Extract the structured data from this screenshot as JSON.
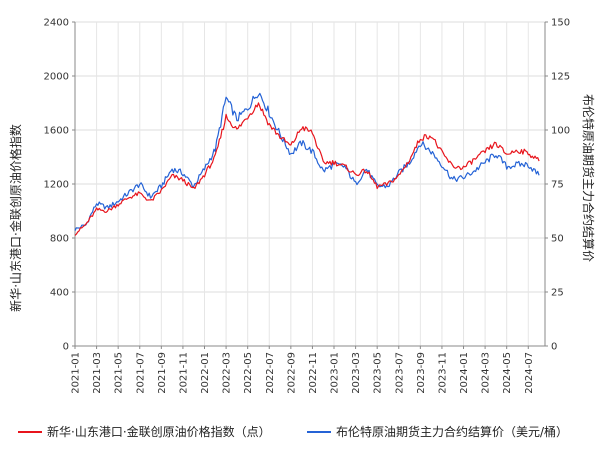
{
  "chart_data": {
    "type": "line",
    "title": "",
    "xlabel": "",
    "ylabel_left": "新华·山东港口·金联创原油价格指数",
    "ylabel_right": "布伦特原油期货主力合约结算价",
    "ylim_left": [
      0,
      2400
    ],
    "ylim_right": [
      0,
      150
    ],
    "yticks_left": [
      "0",
      "400",
      "800",
      "1200",
      "1600",
      "2000",
      "2400"
    ],
    "yticks_right": [
      "0",
      "25",
      "50",
      "75",
      "100",
      "125",
      "150"
    ],
    "x_ticks": [
      "2021-01",
      "2021-03",
      "2021-05",
      "2021-07",
      "2021-09",
      "2021-11",
      "2022-01",
      "2022-03",
      "2022-05",
      "2022-07",
      "2022-09",
      "2022-11",
      "2023-01",
      "2023-03",
      "2023-05",
      "2023-07",
      "2023-09",
      "2023-11",
      "2024-01",
      "2024-03",
      "2024-05",
      "2024-07"
    ],
    "x": [
      "2021-01",
      "2021-02",
      "2021-03",
      "2021-04",
      "2021-05",
      "2021-06",
      "2021-07",
      "2021-08",
      "2021-09",
      "2021-10",
      "2021-11",
      "2021-12",
      "2022-01",
      "2022-02",
      "2022-03",
      "2022-04",
      "2022-05",
      "2022-06",
      "2022-07",
      "2022-08",
      "2022-09",
      "2022-10",
      "2022-11",
      "2022-12",
      "2023-01",
      "2023-02",
      "2023-03",
      "2023-04",
      "2023-05",
      "2023-06",
      "2023-07",
      "2023-08",
      "2023-09",
      "2023-10",
      "2023-11",
      "2023-12",
      "2024-01",
      "2024-02",
      "2024-03",
      "2024-04",
      "2024-05",
      "2024-06",
      "2024-07",
      "2024-08"
    ],
    "grid": true,
    "legend_position": "bottom",
    "series": [
      {
        "name": "新华·山东港口·金联创原油价格指数（点）",
        "axis": "left",
        "color": "#e8141c",
        "values": [
          830,
          900,
          1010,
          1000,
          1050,
          1100,
          1130,
          1070,
          1150,
          1260,
          1230,
          1160,
          1270,
          1400,
          1700,
          1600,
          1700,
          1800,
          1640,
          1550,
          1480,
          1620,
          1580,
          1360,
          1360,
          1330,
          1270,
          1300,
          1180,
          1200,
          1260,
          1380,
          1540,
          1560,
          1430,
          1330,
          1320,
          1380,
          1440,
          1500,
          1420,
          1450,
          1430,
          1370
        ]
      },
      {
        "name": "布伦特原油期货主力合约结算价（美元/桶）",
        "axis": "right",
        "color": "#2563d6",
        "values": [
          54,
          56,
          66,
          64,
          67,
          71,
          75,
          69,
          74,
          82,
          80,
          74,
          82,
          91,
          115,
          105,
          110,
          118,
          108,
          98,
          89,
          94,
          90,
          81,
          84,
          83,
          75,
          82,
          74,
          74,
          80,
          85,
          94,
          90,
          84,
          77,
          78,
          81,
          85,
          89,
          83,
          84,
          84,
          79
        ]
      }
    ]
  }
}
